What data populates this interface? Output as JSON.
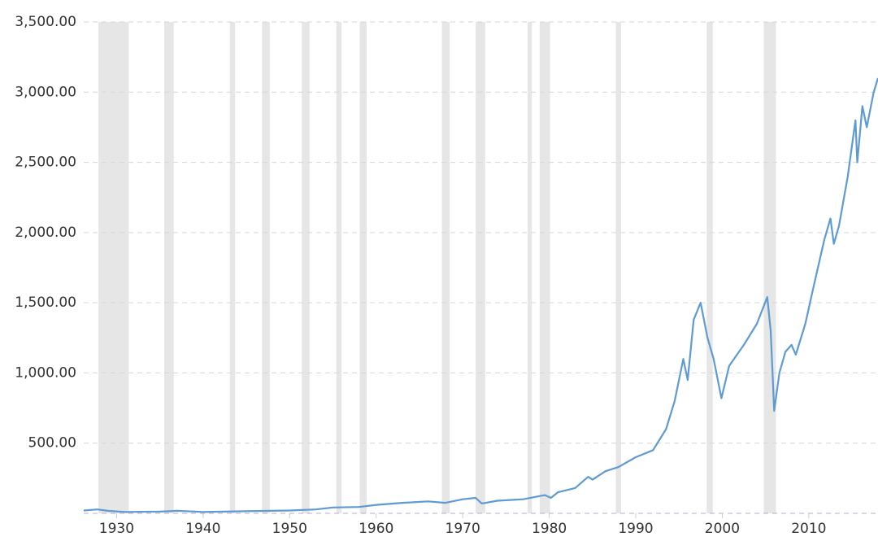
{
  "chart_data": {
    "type": "line",
    "x": [
      1926.2,
      1927.8,
      1929,
      1931,
      1935,
      1937,
      1940,
      1945,
      1950,
      1953,
      1955,
      1958,
      1960,
      1963,
      1966,
      1968,
      1970,
      1971.5,
      1972.2,
      1974,
      1977,
      1979.5,
      1980.2,
      1981,
      1983,
      1984.5,
      1985,
      1986.5,
      1988,
      1990,
      1992,
      1993.5,
      1994.5,
      1995.5,
      1996,
      1996.7,
      1997.5,
      1998.3,
      1999,
      1999.9,
      2000.8,
      2002.5,
      2004,
      2005.2,
      2005.6,
      2006,
      2006.6,
      2007.3,
      2008,
      2008.5,
      2009.6,
      2010.5,
      2011.8,
      2012.5,
      2012.9,
      2013.5,
      2014.5,
      2015.4,
      2015.6,
      2016.2,
      2016.7,
      2017.5,
      2018
    ],
    "values": [
      20,
      28,
      18,
      10,
      12,
      18,
      10,
      15,
      20,
      28,
      42,
      45,
      60,
      75,
      85,
      75,
      100,
      110,
      70,
      90,
      100,
      130,
      110,
      150,
      180,
      260,
      240,
      300,
      330,
      400,
      450,
      600,
      800,
      1100,
      950,
      1380,
      1500,
      1250,
      1100,
      820,
      1050,
      1200,
      1350,
      1540,
      1300,
      730,
      1000,
      1150,
      1200,
      1130,
      1350,
      1600,
      1950,
      2100,
      1920,
      2050,
      2400,
      2800,
      2500,
      2900,
      2750,
      3000,
      3100
    ],
    "color": "#5f9ad3",
    "band_color": "#e6e6e6",
    "shaded_ranges": [
      [
        1927.9,
        1931.4
      ],
      [
        1935.5,
        1936.6
      ],
      [
        1943.1,
        1943.7
      ],
      [
        1946.8,
        1947.7
      ],
      [
        1951.4,
        1952.3
      ],
      [
        1955.4,
        1956.0
      ],
      [
        1958.1,
        1958.9
      ],
      [
        1967.6,
        1968.5
      ],
      [
        1971.5,
        1972.6
      ],
      [
        1977.5,
        1978.0
      ],
      [
        1978.9,
        1980.1
      ],
      [
        1987.7,
        1988.3
      ],
      [
        1998.2,
        1998.9
      ],
      [
        2004.8,
        2006.2
      ]
    ],
    "xlim": [
      1926.2,
      2018
    ],
    "xticks": [
      1930,
      1940,
      1950,
      1960,
      1970,
      1980,
      1990,
      2000,
      2010
    ],
    "ylim": [
      0,
      3500
    ],
    "yticks": [
      {
        "value": 500,
        "label": "500.00"
      },
      {
        "value": 1000,
        "label": "1,000.00"
      },
      {
        "value": 1500,
        "label": "1,500.00"
      },
      {
        "value": 2000,
        "label": "2,000.00"
      },
      {
        "value": 2500,
        "label": "2,500.00"
      },
      {
        "value": 3000,
        "label": "3,000.00"
      },
      {
        "value": 3500,
        "label": "3,500.00"
      }
    ],
    "grid": true
  }
}
